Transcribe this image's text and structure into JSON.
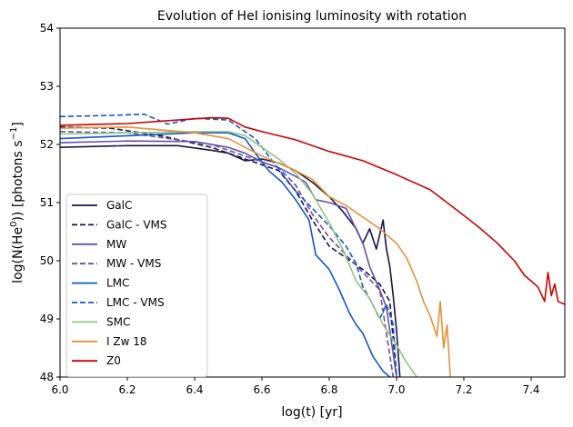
{
  "chart_data": {
    "type": "line",
    "title": "Evolution of HeI ionising luminosity with rotation",
    "xlabel": "log(t) [yr]",
    "ylabel_main": "log(N(He",
    "ylabel_sup_o": "0",
    "ylabel_mid": ")) [photons s",
    "ylabel_sup_exp": "−1",
    "ylabel_end": "]",
    "xlim": [
      6.0,
      7.5
    ],
    "ylim": [
      48,
      54
    ],
    "xticks": [
      6.0,
      6.2,
      6.4,
      6.6,
      6.8,
      7.0,
      7.2,
      7.4
    ],
    "xtick_labels": [
      "6.0",
      "6.2",
      "6.4",
      "6.6",
      "6.8",
      "7.0",
      "7.2",
      "7.4"
    ],
    "yticks": [
      48,
      49,
      50,
      51,
      52,
      53,
      54
    ],
    "ytick_labels": [
      "48",
      "49",
      "50",
      "51",
      "52",
      "53",
      "54"
    ],
    "grid": false,
    "legend_position": "lower-left",
    "series": [
      {
        "name": "GalC",
        "color": "#1b1446",
        "dash": "solid",
        "x": [
          6.0,
          6.2,
          6.35,
          6.45,
          6.5,
          6.55,
          6.6,
          6.65,
          6.7,
          6.75,
          6.8,
          6.84,
          6.88,
          6.9,
          6.92,
          6.94,
          6.96,
          6.97,
          6.98,
          6.99,
          7.0,
          7.01
        ],
        "y": [
          51.95,
          51.98,
          51.98,
          51.9,
          51.85,
          51.72,
          51.75,
          51.68,
          51.55,
          51.35,
          51.1,
          50.85,
          50.55,
          50.3,
          50.55,
          50.2,
          50.7,
          50.2,
          49.9,
          49.4,
          48.8,
          48.0
        ]
      },
      {
        "name": "GalC - VMS",
        "color": "#1b1446",
        "dash": "dashed",
        "x": [
          6.0,
          6.15,
          6.3,
          6.45,
          6.55,
          6.65,
          6.7,
          6.75,
          6.8,
          6.85,
          6.9,
          6.95,
          6.98,
          7.0
        ],
        "y": [
          52.3,
          52.28,
          52.15,
          51.95,
          51.75,
          51.55,
          51.2,
          50.7,
          50.25,
          50.05,
          49.85,
          49.6,
          49.3,
          48.0
        ]
      },
      {
        "name": "MW",
        "color": "#6650a8",
        "dash": "solid",
        "x": [
          6.0,
          6.2,
          6.4,
          6.5,
          6.55,
          6.6,
          6.65,
          6.7,
          6.73,
          6.76,
          6.8,
          6.85,
          6.9,
          6.92,
          6.95,
          6.97,
          7.0
        ],
        "y": [
          52.03,
          52.06,
          52.05,
          51.95,
          51.85,
          51.7,
          51.6,
          51.45,
          51.35,
          51.05,
          51.0,
          50.9,
          50.3,
          49.9,
          49.5,
          49.2,
          48.0
        ]
      },
      {
        "name": "MW - VMS",
        "color": "#6650a8",
        "dash": "dashed",
        "x": [
          6.0,
          6.2,
          6.35,
          6.45,
          6.55,
          6.65,
          6.7,
          6.75,
          6.8,
          6.85,
          6.9,
          6.95,
          6.99
        ],
        "y": [
          52.22,
          52.2,
          52.08,
          52.0,
          51.8,
          51.6,
          51.3,
          50.8,
          50.4,
          50.1,
          49.8,
          49.5,
          48.0
        ]
      },
      {
        "name": "LMC",
        "color": "#1357c8",
        "dash": "solid",
        "x": [
          6.0,
          6.2,
          6.4,
          6.5,
          6.55,
          6.58,
          6.62,
          6.66,
          6.7,
          6.74,
          6.76,
          6.8,
          6.83,
          6.86,
          6.88,
          6.9,
          6.93,
          6.96,
          6.98
        ],
        "y": [
          52.1,
          52.15,
          52.2,
          52.2,
          52.1,
          51.85,
          51.55,
          51.35,
          51.05,
          50.7,
          50.1,
          49.85,
          49.5,
          49.1,
          48.9,
          48.75,
          48.35,
          48.1,
          48.0
        ]
      },
      {
        "name": "LMC - VMS",
        "color": "#1357c8",
        "dash": "dashed",
        "x": [
          6.0,
          6.15,
          6.25,
          6.32,
          6.4,
          6.5,
          6.58,
          6.62,
          6.66,
          6.7,
          6.75,
          6.8,
          6.85,
          6.88,
          6.9,
          6.92,
          6.95,
          6.97,
          6.99,
          7.0
        ],
        "y": [
          52.48,
          52.5,
          52.52,
          52.35,
          52.45,
          52.42,
          52.1,
          51.8,
          51.5,
          51.2,
          50.9,
          50.6,
          50.25,
          49.95,
          49.55,
          49.35,
          49.0,
          49.25,
          48.9,
          48.0
        ]
      },
      {
        "name": "SMC",
        "color": "#93c47d",
        "dash": "solid",
        "x": [
          6.0,
          6.2,
          6.4,
          6.5,
          6.55,
          6.6,
          6.65,
          6.7,
          6.75,
          6.8,
          6.84,
          6.88,
          6.92,
          6.96,
          7.0,
          7.03,
          7.06
        ],
        "y": [
          52.18,
          52.2,
          52.22,
          52.22,
          52.15,
          51.95,
          51.75,
          51.5,
          51.15,
          50.65,
          50.2,
          49.65,
          49.35,
          48.9,
          48.55,
          48.25,
          48.0
        ]
      },
      {
        "name": "I Zw 18",
        "color": "#e69138",
        "dash": "solid",
        "x": [
          6.0,
          6.2,
          6.4,
          6.5,
          6.55,
          6.6,
          6.7,
          6.75,
          6.8,
          6.85,
          6.9,
          6.95,
          7.0,
          7.03,
          7.06,
          7.08,
          7.1,
          7.12,
          7.13,
          7.14,
          7.15,
          7.16
        ],
        "y": [
          52.28,
          52.3,
          52.2,
          52.1,
          51.95,
          51.8,
          51.55,
          51.4,
          51.1,
          50.95,
          50.75,
          50.55,
          50.3,
          50.05,
          49.65,
          49.3,
          49.05,
          48.7,
          49.3,
          48.5,
          48.9,
          48.0
        ]
      },
      {
        "name": "Z0",
        "color": "#cc0000",
        "dash": "solid",
        "x": [
          6.0,
          6.2,
          6.35,
          6.45,
          6.5,
          6.55,
          6.6,
          6.7,
          6.8,
          6.9,
          7.0,
          7.1,
          7.15,
          7.2,
          7.25,
          7.3,
          7.35,
          7.38,
          7.4,
          7.42,
          7.44,
          7.45,
          7.46,
          7.47,
          7.48,
          7.5
        ],
        "y": [
          52.33,
          52.36,
          52.42,
          52.46,
          52.45,
          52.3,
          52.22,
          52.08,
          51.88,
          51.72,
          51.48,
          51.22,
          51.0,
          50.78,
          50.55,
          50.3,
          50.0,
          49.75,
          49.65,
          49.55,
          49.3,
          49.8,
          49.4,
          49.6,
          49.3,
          49.25
        ]
      }
    ]
  }
}
